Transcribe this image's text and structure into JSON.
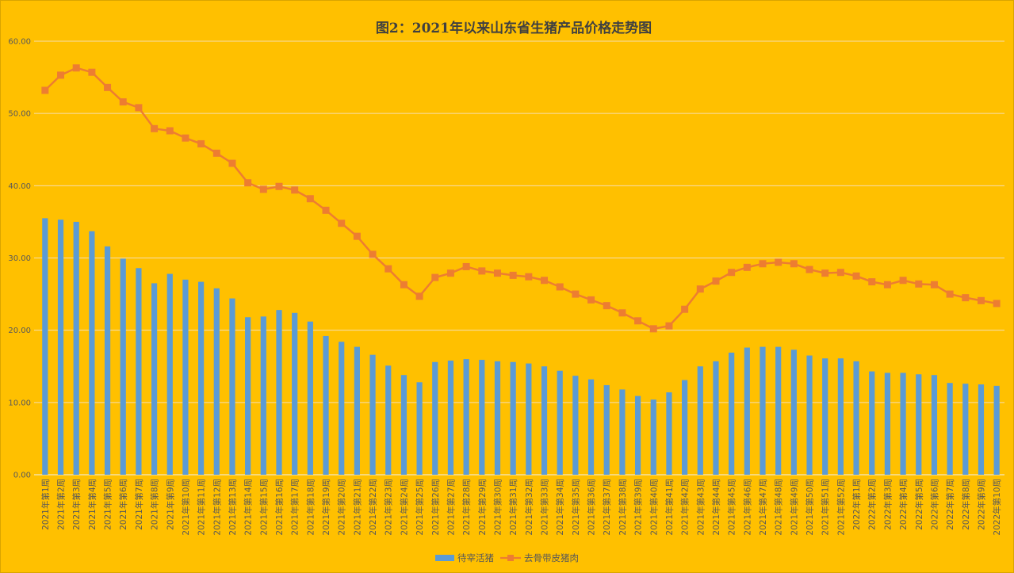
{
  "chart_data": {
    "type": "bar+line",
    "title": "图2：2021年以来山东省生猪产品价格走势图",
    "xlabel": "",
    "ylabel": "",
    "ylim": [
      0,
      60
    ],
    "yticks": [
      "0.00",
      "10.00",
      "20.00",
      "30.00",
      "40.00",
      "50.00",
      "60.00"
    ],
    "grid": true,
    "legend_position": "bottom",
    "categories": [
      "2021年第1周",
      "2021年第2周",
      "2021年第3周",
      "2021年第4周",
      "2021年第5周",
      "2021年第6周",
      "2021年第7周",
      "2021年第8周",
      "2021年第9周",
      "2021年第10周",
      "2021年第11周",
      "2021年第12周",
      "2021年第13周",
      "2021年第14周",
      "2021年第15周",
      "2021年第16周",
      "2021年第17周",
      "2021年第18周",
      "2021年第19周",
      "2021年第20周",
      "2021年第21周",
      "2021年第22周",
      "2021年第23周",
      "2021年第24周",
      "2021年第25周",
      "2021年第26周",
      "2021年第27周",
      "2021年第28周",
      "2021年第29周",
      "2021年第30周",
      "2021年第31周",
      "2021年第32周",
      "2021年第33周",
      "2021年第34周",
      "2021年第35周",
      "2021年第36周",
      "2021年第37周",
      "2021年第38周",
      "2021年第39周",
      "2021年第40周",
      "2021年第41周",
      "2021年第42周",
      "2021年第43周",
      "2021年第44周",
      "2021年第45周",
      "2021年第46周",
      "2021年第47周",
      "2021年第48周",
      "2021年第49周",
      "2021年第50周",
      "2021年第51周",
      "2021年第52周",
      "2022年第1周",
      "2022年第2周",
      "2022年第3周",
      "2022年第4周",
      "2022年第5周",
      "2022年第6周",
      "2022年第7周",
      "2022年第8周",
      "2022年第9周",
      "2022年第10周"
    ],
    "series": [
      {
        "name": "待宰活猪",
        "type": "bar",
        "color": "#5B9BD5",
        "values": [
          35.5,
          35.3,
          35.0,
          33.7,
          31.6,
          29.9,
          28.6,
          26.5,
          27.8,
          27.0,
          26.7,
          25.8,
          24.4,
          21.8,
          21.9,
          22.8,
          22.4,
          21.2,
          19.2,
          18.4,
          17.7,
          16.6,
          15.1,
          13.8,
          12.8,
          15.6,
          15.8,
          16.0,
          15.9,
          15.7,
          15.6,
          15.4,
          15.0,
          14.4,
          13.7,
          13.2,
          12.4,
          11.8,
          10.9,
          10.4,
          11.4,
          13.1,
          15.0,
          15.7,
          16.9,
          17.6,
          17.7,
          17.7,
          17.3,
          16.5,
          16.1,
          16.1,
          15.7,
          14.3,
          14.1,
          14.1,
          13.9,
          13.8,
          12.7,
          12.6,
          12.5,
          12.3
        ]
      },
      {
        "name": "去骨带皮猪肉",
        "type": "line",
        "color": "#ED7D31",
        "values": [
          53.2,
          55.3,
          56.3,
          55.7,
          53.6,
          51.6,
          50.8,
          47.9,
          47.6,
          46.6,
          45.8,
          44.5,
          43.1,
          40.4,
          39.5,
          39.9,
          39.4,
          38.2,
          36.6,
          34.8,
          33.0,
          30.5,
          28.5,
          26.3,
          24.7,
          27.3,
          27.9,
          28.8,
          28.2,
          27.9,
          27.6,
          27.4,
          26.9,
          26.0,
          25.0,
          24.2,
          23.4,
          22.4,
          21.3,
          20.2,
          20.6,
          22.9,
          25.7,
          26.8,
          28.0,
          28.7,
          29.2,
          29.4,
          29.2,
          28.4,
          27.9,
          28.0,
          27.5,
          26.7,
          26.3,
          26.9,
          26.4,
          26.3,
          25.0,
          24.5,
          24.1,
          23.7
        ]
      }
    ]
  }
}
